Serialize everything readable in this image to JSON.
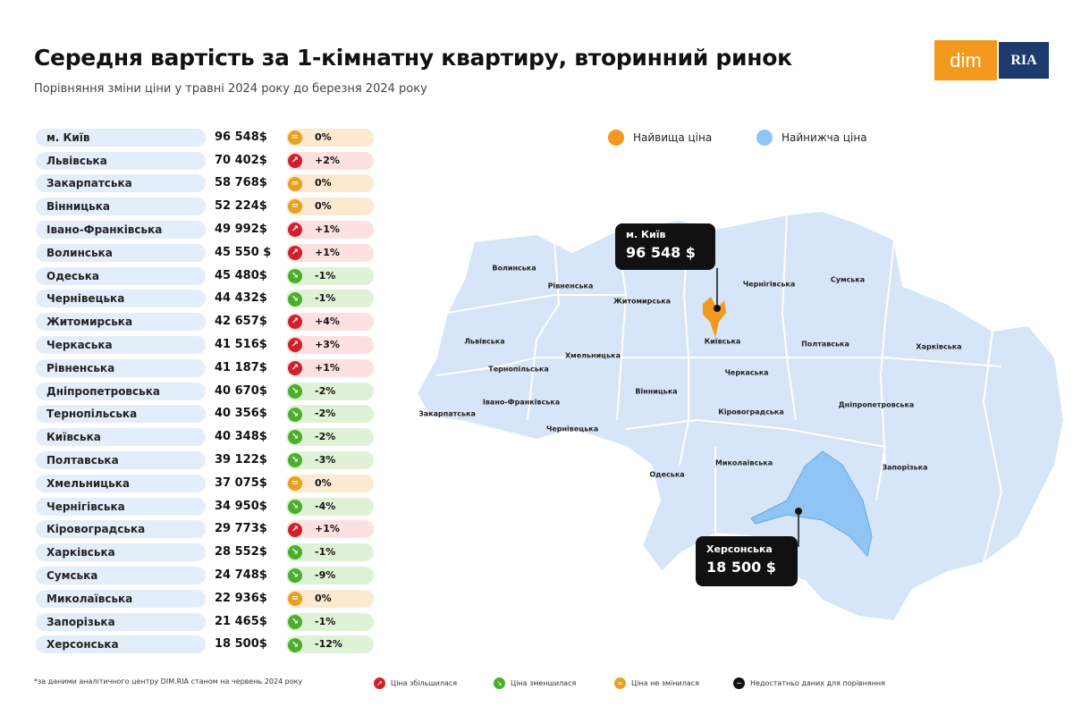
{
  "header": {
    "title": "Середня вартість за 1-кімнатну квартиру, вторинний ринок",
    "subtitle": "Порівняння зміни ціни у травні 2024 року до березня 2024 року"
  },
  "logo": {
    "left": "dim",
    "right": "RIA",
    "colors": {
      "dim": "#f39a1e",
      "ria": "#1c3a6b"
    }
  },
  "colors": {
    "up": "#d0202a",
    "down": "#4caf2c",
    "same": "#e8a020",
    "nodata": "#111111",
    "highest": "#f39a1e",
    "lowest": "#8ec5f5",
    "map": "#d6e6f8"
  },
  "rows": [
    {
      "name": "м. Київ",
      "value": "96 548$",
      "change": "0%",
      "status": "same"
    },
    {
      "name": "Львівська",
      "value": "70 402$",
      "change": "+2%",
      "status": "up"
    },
    {
      "name": "Закарпатська",
      "value": "58 768$",
      "change": "0%",
      "status": "same"
    },
    {
      "name": "Вінницька",
      "value": "52 224$",
      "change": "0%",
      "status": "same"
    },
    {
      "name": "Івано-Франківська",
      "value": "49 992$",
      "change": "+1%",
      "status": "up"
    },
    {
      "name": "Волинська",
      "value": "45 550 $",
      "change": "+1%",
      "status": "up"
    },
    {
      "name": "Одеська",
      "value": "45 480$",
      "change": "-1%",
      "status": "down"
    },
    {
      "name": "Чернівецька",
      "value": "44 432$",
      "change": "-1%",
      "status": "down"
    },
    {
      "name": "Житомирська",
      "value": "42 657$",
      "change": "+4%",
      "status": "up"
    },
    {
      "name": "Черкаська",
      "value": "41 516$",
      "change": "+3%",
      "status": "up"
    },
    {
      "name": "Рівненська",
      "value": "41 187$",
      "change": "+1%",
      "status": "up"
    },
    {
      "name": "Дніпропетровська",
      "value": "40 670$",
      "change": "-2%",
      "status": "down"
    },
    {
      "name": "Тернопільська",
      "value": "40 356$",
      "change": "-2%",
      "status": "down"
    },
    {
      "name": "Київська",
      "value": "40 348$",
      "change": "-2%",
      "status": "down"
    },
    {
      "name": "Полтавська",
      "value": "39 122$",
      "change": "-3%",
      "status": "down"
    },
    {
      "name": "Хмельницька",
      "value": "37 075$",
      "change": "0%",
      "status": "same"
    },
    {
      "name": "Чернігівська",
      "value": "34 950$",
      "change": "-4%",
      "status": "down"
    },
    {
      "name": "Кіровоградська",
      "value": "29 773$",
      "change": "+1%",
      "status": "up"
    },
    {
      "name": "Харківська",
      "value": "28 552$",
      "change": "-1%",
      "status": "down"
    },
    {
      "name": "Сумська",
      "value": "24 748$",
      "change": "-9%",
      "status": "down"
    },
    {
      "name": "Миколаївська",
      "value": "22 936$",
      "change": "0%",
      "status": "same"
    },
    {
      "name": "Запорізька",
      "value": "21 465$",
      "change": "-1%",
      "status": "down"
    },
    {
      "name": "Херсонська",
      "value": "18 500$",
      "change": "-12%",
      "status": "down"
    }
  ],
  "legend": {
    "highest": "Найвища ціна",
    "lowest": "Найнижча ціна"
  },
  "map": {
    "labels": [
      "Волинська",
      "Рівненська",
      "Житомирська",
      "Чернігівська",
      "Сумська",
      "Львівська",
      "Київська",
      "Хмельницька",
      "Тернопільська",
      "Полтавська",
      "Харківська",
      "Черкаська",
      "Вінницька",
      "Івано-Франківська",
      "Закарпатська",
      "Чернівецька",
      "Кіровоградська",
      "Дніпропетровська",
      "Миколаївська",
      "Одеська",
      "Запорізька"
    ],
    "highest": {
      "name": "м. Київ",
      "value": "96 548 $"
    },
    "lowest": {
      "name": "Херсонська",
      "value": "18 500 $"
    }
  },
  "footer": {
    "note": "*за даними аналітичного центру DIM.RIA станом на червень 2024 року",
    "up": "Ціна збільшилася",
    "down": "Ціна зменшилася",
    "same": "Ціна не змінилася",
    "nodata": "Недостатньо даних для порівняння"
  }
}
